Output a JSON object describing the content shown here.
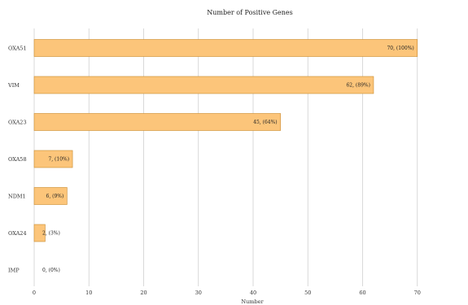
{
  "chart_data": {
    "type": "bar",
    "orientation": "horizontal",
    "title": "Number of Positive Genes",
    "xlabel": "Number",
    "ylabel": "",
    "categories": [
      "OXA51",
      "VIM",
      "OXA23",
      "OXA58",
      "NDM1",
      "OXA24",
      "IMP"
    ],
    "values": [
      70,
      62,
      45,
      7,
      6,
      2,
      0
    ],
    "data_labels": [
      "70, (100%)",
      "62, (89%)",
      "45, (64%)",
      "7, (10%)",
      "6, (9%)",
      "2, (3%)",
      "0, (0%)"
    ],
    "xlim": [
      0,
      80
    ],
    "xticks": [
      "0",
      "10",
      "20",
      "30",
      "40",
      "50",
      "60",
      "70"
    ],
    "grid": true,
    "legend": "none",
    "colors": {
      "bar_fill": "#fcc57a",
      "bar_stroke": "#c98a2e",
      "grid": "#d0d0d0"
    }
  }
}
